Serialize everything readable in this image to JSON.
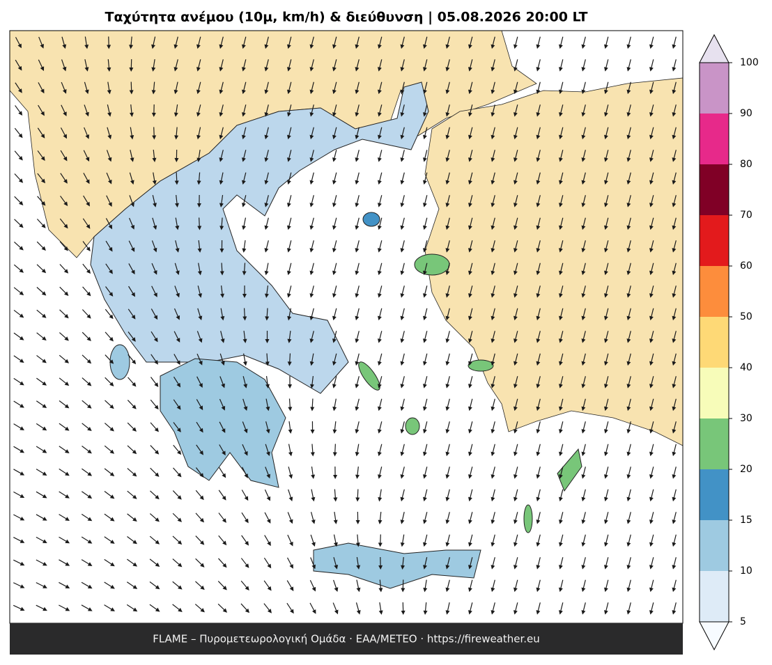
{
  "title": "Ταχύτητα ανέμου (10μ, km/h) & διεύθυνση  |  05.08.2026 20:00 LT",
  "footer": "FLAME – Πυρομετεωρολογική Ομάδα · ΕΑΑ/METEO · https://fireweather.eu",
  "colorbar": {
    "boundaries": [
      5,
      10,
      15,
      20,
      30,
      40,
      50,
      60,
      70,
      80,
      90,
      100
    ],
    "colors": [
      "#deebf7",
      "#9ecae1",
      "#4292c6",
      "#78c679",
      "#f7fcb9",
      "#fed976",
      "#fd8d3c",
      "#e31a1c",
      "#800026",
      "#e7298a",
      "#c994c7"
    ],
    "under_color": "#f7fbff",
    "over_color": "#e7e1ef"
  }
}
